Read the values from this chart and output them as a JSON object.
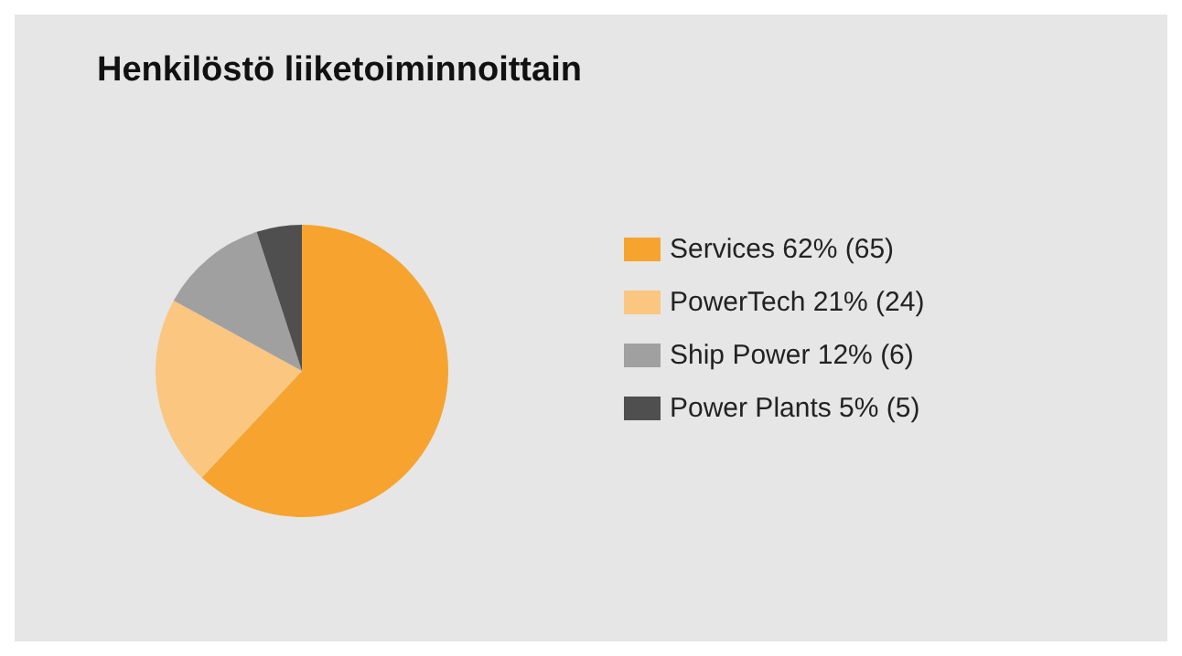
{
  "chart_data": {
    "type": "pie",
    "title": "Henkilöstö liiketoiminnoittain",
    "categories": [
      "Services 62% (65)",
      "PowerTech 21% (24)",
      "Ship Power 12% (6)",
      "Power Plants 5% (5)"
    ],
    "values": [
      62,
      21,
      12,
      5
    ],
    "colors": [
      "#f6a42f",
      "#fbc680",
      "#a0a0a0",
      "#4f4f4f"
    ],
    "legend": "right"
  }
}
